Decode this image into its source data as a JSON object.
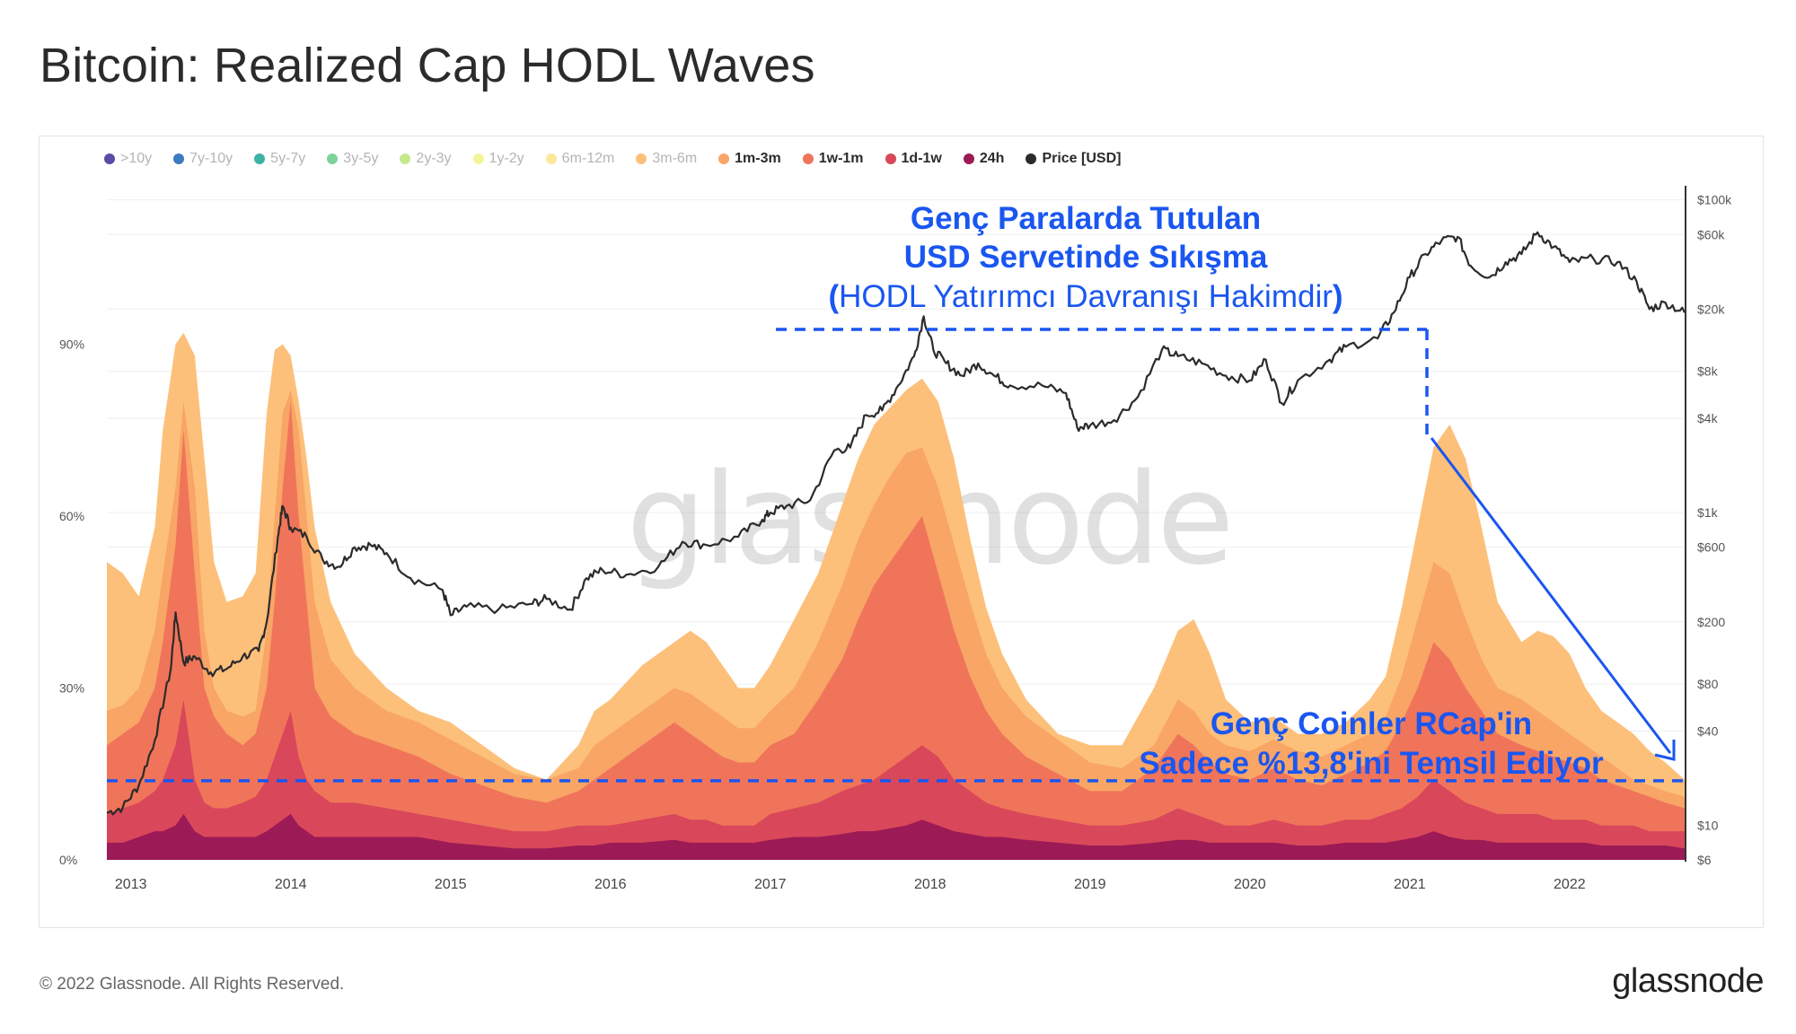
{
  "title": "Bitcoin: Realized Cap HODL Waves",
  "footer": {
    "copyright": "© 2022 Glassnode. All Rights Reserved.",
    "logo": "glassnode"
  },
  "watermark": "glassnode",
  "legend": [
    {
      "label": ">10y",
      "color": "#5b4aa8",
      "active": false
    },
    {
      "label": "7y-10y",
      "color": "#3b7bbf",
      "active": false
    },
    {
      "label": "5y-7y",
      "color": "#3bb3a5",
      "active": false
    },
    {
      "label": "3y-5y",
      "color": "#7fd19a",
      "active": false
    },
    {
      "label": "2y-3y",
      "color": "#c6e98c",
      "active": false
    },
    {
      "label": "1y-2y",
      "color": "#f4f49a",
      "active": false
    },
    {
      "label": "6m-12m",
      "color": "#fde79b",
      "active": false
    },
    {
      "label": "3m-6m",
      "color": "#fdc07a",
      "active": false
    },
    {
      "label": "1m-3m",
      "color": "#f8a566",
      "active": true
    },
    {
      "label": "1w-1m",
      "color": "#f0745a",
      "active": true
    },
    {
      "label": "1d-1w",
      "color": "#d9475a",
      "active": true
    },
    {
      "label": "24h",
      "color": "#9c1a55",
      "active": true
    },
    {
      "label": "Price [USD]",
      "color": "#2b2b2b",
      "active": true
    }
  ],
  "annotations": {
    "top_line1": "Genç Paralarda Tutulan",
    "top_line2": "USD Servetinde Sıkışma",
    "top_line3_open": "(",
    "top_line3_text": "HODL Yatırımcı Davranışı Hakimdir",
    "top_line3_close": ")",
    "bottom_line1": "Genç Coinler RCap'in",
    "bottom_line2": "Sadece %13,8'ini Temsil Ediyor",
    "annotation_color": "#1a56f0",
    "baseline_percent": 13.8
  },
  "chart_data": {
    "type": "area",
    "x_ticks": [
      "2013",
      "2014",
      "2015",
      "2016",
      "2017",
      "2018",
      "2019",
      "2020",
      "2021",
      "2022"
    ],
    "x_range": [
      2012.85,
      2022.72
    ],
    "y_left": {
      "ticks": [
        "0%",
        "30%",
        "60%",
        "90%"
      ],
      "range": [
        0,
        120
      ]
    },
    "y_right": {
      "scale": "log",
      "ticks": [
        "$6",
        "$10",
        "$40",
        "$80",
        "$200",
        "$600",
        "$1k",
        "$4k",
        "$8k",
        "$20k",
        "$60k",
        "$100k"
      ],
      "range": [
        6,
        150000
      ]
    },
    "x": [
      2012.85,
      2012.95,
      2013.05,
      2013.15,
      2013.2,
      2013.28,
      2013.33,
      2013.4,
      2013.46,
      2013.52,
      2013.6,
      2013.7,
      2013.78,
      2013.85,
      2013.9,
      2013.95,
      2014.0,
      2014.05,
      2014.1,
      2014.15,
      2014.25,
      2014.4,
      2014.6,
      2014.8,
      2015.0,
      2015.2,
      2015.4,
      2015.6,
      2015.8,
      2015.9,
      2016.0,
      2016.2,
      2016.4,
      2016.5,
      2016.6,
      2016.7,
      2016.8,
      2016.9,
      2017.0,
      2017.15,
      2017.3,
      2017.45,
      2017.55,
      2017.65,
      2017.75,
      2017.85,
      2017.95,
      2018.05,
      2018.15,
      2018.25,
      2018.35,
      2018.45,
      2018.6,
      2018.8,
      2019.0,
      2019.2,
      2019.4,
      2019.55,
      2019.65,
      2019.75,
      2019.85,
      2020.0,
      2020.15,
      2020.3,
      2020.45,
      2020.6,
      2020.75,
      2020.85,
      2020.95,
      2021.05,
      2021.15,
      2021.25,
      2021.35,
      2021.45,
      2021.55,
      2021.7,
      2021.8,
      2021.9,
      2022.0,
      2022.1,
      2022.2,
      2022.3,
      2022.4,
      2022.5,
      2022.6,
      2022.72
    ],
    "series": [
      {
        "name": "24h",
        "color": "#9c1a55",
        "values": [
          3,
          3,
          4,
          5,
          5,
          6,
          8,
          5,
          4,
          4,
          4,
          4,
          4,
          5,
          6,
          7,
          8,
          6,
          5,
          4,
          4,
          4,
          4,
          4,
          3,
          2.5,
          2,
          2,
          2.5,
          2.5,
          3,
          3,
          3.5,
          3,
          3,
          3,
          3,
          3,
          3.5,
          4,
          4,
          4.5,
          5,
          5,
          5.5,
          6,
          7,
          6,
          5,
          4.5,
          4,
          4,
          3.5,
          3,
          2.5,
          2.5,
          3,
          3.5,
          3.5,
          3,
          3,
          3,
          3,
          2.5,
          2.5,
          3,
          3,
          3,
          3.5,
          4,
          5,
          4,
          3.5,
          3.5,
          3,
          3,
          3,
          3,
          3,
          3,
          2.5,
          2.5,
          2.5,
          2.5,
          2.5,
          2
        ]
      },
      {
        "name": "1d-1w",
        "color": "#d9475a",
        "values": [
          8,
          9,
          10,
          12,
          14,
          20,
          28,
          14,
          10,
          9,
          9,
          10,
          11,
          14,
          18,
          22,
          26,
          18,
          14,
          12,
          10,
          10,
          9,
          8,
          7,
          6,
          5,
          5,
          6,
          6,
          6,
          7,
          8,
          7,
          7,
          6,
          6,
          6,
          8,
          9,
          10,
          12,
          13,
          14,
          16,
          18,
          20,
          18,
          14,
          12,
          10,
          9,
          8,
          7,
          6,
          6,
          7,
          9,
          8,
          7,
          6,
          6,
          7,
          6,
          6,
          7,
          7,
          8,
          9,
          11,
          14,
          12,
          10,
          9,
          8,
          8,
          8,
          7,
          7,
          7,
          6,
          6,
          6,
          5,
          5,
          5
        ]
      },
      {
        "name": "1w-1m",
        "color": "#f0745a",
        "values": [
          20,
          22,
          24,
          30,
          38,
          55,
          75,
          50,
          30,
          25,
          22,
          20,
          22,
          30,
          45,
          65,
          80,
          60,
          45,
          30,
          25,
          22,
          20,
          18,
          15,
          13,
          11,
          10,
          12,
          14,
          16,
          20,
          24,
          22,
          20,
          18,
          17,
          17,
          20,
          22,
          28,
          35,
          42,
          48,
          52,
          56,
          60,
          50,
          40,
          32,
          26,
          22,
          18,
          15,
          12,
          12,
          16,
          22,
          20,
          17,
          15,
          14,
          16,
          14,
          13,
          15,
          17,
          19,
          24,
          30,
          38,
          35,
          30,
          26,
          22,
          20,
          19,
          18,
          17,
          16,
          14,
          13,
          12,
          11,
          10,
          9
        ]
      },
      {
        "name": "1m-3m",
        "color": "#f8a566",
        "values": [
          26,
          27,
          30,
          40,
          50,
          65,
          80,
          65,
          40,
          30,
          26,
          25,
          26,
          40,
          60,
          78,
          82,
          75,
          60,
          45,
          35,
          30,
          26,
          24,
          21,
          18,
          15,
          14,
          16,
          20,
          22,
          26,
          30,
          29,
          27,
          25,
          23,
          23,
          26,
          30,
          38,
          48,
          56,
          62,
          67,
          71,
          72,
          65,
          55,
          45,
          36,
          30,
          25,
          21,
          17,
          16,
          20,
          28,
          26,
          22,
          20,
          19,
          21,
          19,
          18,
          20,
          22,
          25,
          32,
          42,
          52,
          50,
          42,
          35,
          30,
          28,
          26,
          24,
          22,
          20,
          18,
          16,
          14,
          13,
          12,
          11
        ]
      },
      {
        "name": "3m-6m",
        "color": "#fdc07a",
        "values": [
          52,
          50,
          46,
          58,
          75,
          90,
          92,
          88,
          70,
          52,
          45,
          46,
          50,
          78,
          89,
          90,
          88,
          80,
          70,
          58,
          45,
          36,
          30,
          26,
          24,
          20,
          16,
          14,
          20,
          26,
          28,
          34,
          38,
          40,
          38,
          34,
          30,
          30,
          34,
          42,
          50,
          62,
          70,
          76,
          79,
          82,
          84,
          80,
          70,
          56,
          44,
          36,
          28,
          22,
          20,
          20,
          30,
          40,
          42,
          36,
          28,
          24,
          25,
          22,
          22,
          24,
          28,
          32,
          44,
          58,
          72,
          76,
          70,
          58,
          45,
          38,
          40,
          39,
          36,
          30,
          26,
          24,
          22,
          19,
          17,
          14
        ]
      }
    ],
    "price_anchors": [
      [
        2012.85,
        12
      ],
      [
        2012.95,
        13
      ],
      [
        2013.05,
        18
      ],
      [
        2013.15,
        35
      ],
      [
        2013.25,
        100
      ],
      [
        2013.28,
        230
      ],
      [
        2013.33,
        110
      ],
      [
        2013.4,
        120
      ],
      [
        2013.5,
        95
      ],
      [
        2013.6,
        100
      ],
      [
        2013.7,
        120
      ],
      [
        2013.8,
        130
      ],
      [
        2013.85,
        200
      ],
      [
        2013.92,
        700
      ],
      [
        2013.95,
        1100
      ],
      [
        2014.0,
        800
      ],
      [
        2014.1,
        700
      ],
      [
        2014.2,
        500
      ],
      [
        2014.3,
        450
      ],
      [
        2014.4,
        600
      ],
      [
        2014.5,
        620
      ],
      [
        2014.6,
        550
      ],
      [
        2014.75,
        380
      ],
      [
        2014.95,
        320
      ],
      [
        2015.0,
        220
      ],
      [
        2015.1,
        250
      ],
      [
        2015.3,
        240
      ],
      [
        2015.5,
        260
      ],
      [
        2015.6,
        280
      ],
      [
        2015.75,
        240
      ],
      [
        2015.85,
        380
      ],
      [
        2015.95,
        430
      ],
      [
        2016.1,
        400
      ],
      [
        2016.3,
        450
      ],
      [
        2016.45,
        650
      ],
      [
        2016.6,
        620
      ],
      [
        2016.8,
        700
      ],
      [
        2016.95,
        900
      ],
      [
        2017.0,
        1000
      ],
      [
        2017.1,
        1100
      ],
      [
        2017.25,
        1200
      ],
      [
        2017.4,
        2500
      ],
      [
        2017.5,
        2600
      ],
      [
        2017.6,
        4200
      ],
      [
        2017.7,
        4500
      ],
      [
        2017.8,
        6500
      ],
      [
        2017.9,
        10000
      ],
      [
        2017.96,
        18000
      ],
      [
        2018.02,
        11000
      ],
      [
        2018.1,
        9000
      ],
      [
        2018.2,
        7500
      ],
      [
        2018.3,
        9000
      ],
      [
        2018.4,
        7500
      ],
      [
        2018.5,
        6500
      ],
      [
        2018.7,
        6500
      ],
      [
        2018.85,
        5800
      ],
      [
        2018.92,
        3500
      ],
      [
        2019.0,
        3600
      ],
      [
        2019.15,
        3900
      ],
      [
        2019.3,
        5500
      ],
      [
        2019.45,
        11000
      ],
      [
        2019.55,
        10000
      ],
      [
        2019.7,
        9000
      ],
      [
        2019.85,
        7500
      ],
      [
        2020.0,
        7000
      ],
      [
        2020.1,
        9500
      ],
      [
        2020.2,
        5000
      ],
      [
        2020.3,
        7000
      ],
      [
        2020.5,
        9500
      ],
      [
        2020.6,
        11500
      ],
      [
        2020.8,
        13000
      ],
      [
        2020.9,
        19000
      ],
      [
        2021.0,
        32000
      ],
      [
        2021.1,
        45000
      ],
      [
        2021.2,
        55000
      ],
      [
        2021.3,
        58000
      ],
      [
        2021.38,
        38000
      ],
      [
        2021.5,
        32000
      ],
      [
        2021.6,
        40000
      ],
      [
        2021.7,
        45000
      ],
      [
        2021.8,
        62000
      ],
      [
        2021.9,
        50000
      ],
      [
        2022.0,
        40000
      ],
      [
        2022.15,
        42000
      ],
      [
        2022.3,
        40000
      ],
      [
        2022.42,
        30000
      ],
      [
        2022.5,
        20000
      ],
      [
        2022.6,
        22000
      ],
      [
        2022.72,
        19000
      ]
    ]
  }
}
